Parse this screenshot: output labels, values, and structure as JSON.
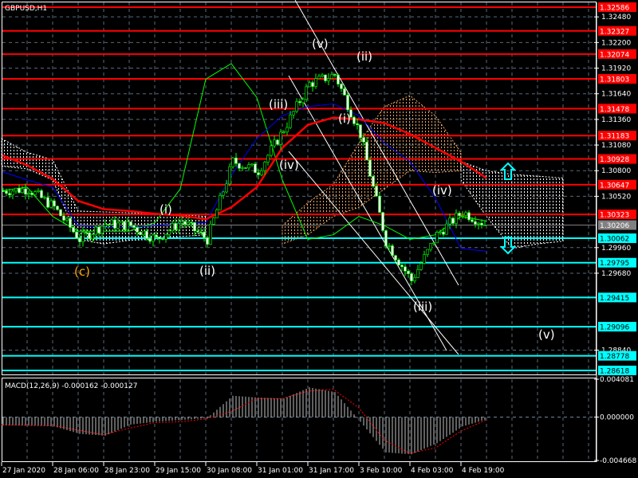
{
  "chart_title": "GBPUSD,H1",
  "macd_label": "MACD(12,26,9) -0.000162 -0.000127",
  "colors": {
    "background": "#000000",
    "bull_candle": "#00ff00",
    "resistance": "#ff0000",
    "support": "#00ffff",
    "current_price": "#808080",
    "ma_thick": "#ff0000",
    "kijun": "#0000ff",
    "chikou": "#00ff00",
    "cloud_bull": "#f4a460",
    "cloud_bear": "#ffffff",
    "macd_hist": "#c0c0c0",
    "macd_signal": "#ff0000"
  },
  "chart_data": {
    "type": "candlestick",
    "symbol": "GBPUSD",
    "timeframe": "H1",
    "ylim": [
      1.28618,
      1.32586
    ],
    "price_ticks": [
      "1.32480",
      "1.32200",
      "1.31920",
      "1.31640",
      "1.31360",
      "1.31080",
      "1.30800",
      "1.30520",
      "1.29960",
      "1.29680",
      "1.28840"
    ],
    "time_labels": [
      "27 Jan 2020",
      "28 Jan 06:00",
      "28 Jan 23:00",
      "29 Jan 15:00",
      "30 Jan 08:00",
      "31 Jan 01:00",
      "31 Jan 17:00",
      "3 Feb 10:00",
      "4 Feb 03:00",
      "4 Feb 19:00"
    ],
    "close_samples_every_8_bars": [
      1.3058,
      1.306,
      1.304,
      1.3005,
      1.3022,
      1.302,
      1.3005,
      1.3025,
      1.3005,
      1.309,
      1.308,
      1.3125,
      1.3175,
      1.3185,
      1.312,
      1.3003,
      1.296,
      1.301,
      1.3035,
      1.302
    ],
    "current_price": "1.30206",
    "resistance_levels": [
      "1.32586",
      "1.32327",
      "1.32074",
      "1.31803",
      "1.31478",
      "1.31183",
      "1.30928",
      "1.30647",
      "1.30323"
    ],
    "support_levels": [
      "1.30062",
      "1.29795",
      "1.29415",
      "1.29096",
      "1.28778",
      "1.28618"
    ],
    "indicators": {
      "moving_average": [
        1.3097,
        1.3086,
        1.3071,
        1.3047,
        1.3038,
        1.3036,
        1.3033,
        1.3031,
        1.3027,
        1.304,
        1.3062,
        1.3105,
        1.313,
        1.3138,
        1.3136,
        1.3132,
        1.312,
        1.3105,
        1.309,
        1.3072
      ],
      "kijun": [
        1.3079,
        1.307,
        1.3062,
        1.302,
        1.3018,
        1.3018,
        1.302,
        1.3023,
        1.3023,
        1.3075,
        1.3115,
        1.314,
        1.315,
        1.3153,
        1.314,
        1.311,
        1.309,
        1.305,
        1.2995,
        1.2992
      ],
      "chikou": [
        1.3058,
        1.3062,
        1.303,
        1.3014,
        1.3014,
        1.3014,
        1.3023,
        1.306,
        1.318,
        1.3197,
        1.316,
        1.307,
        1.3005,
        1.301,
        1.303,
        1.302,
        1.3005,
        1.301,
        1.303,
        1.3025
      ],
      "clouds": [
        {
          "kind": "bear",
          "start_sample": 0,
          "upper": [
            1.3115,
            1.31,
            1.3092,
            1.3036,
            1.3035,
            1.3034,
            1.3033,
            1.3032,
            1.303
          ],
          "lower": [
            1.3085,
            1.3082,
            1.307,
            1.3005,
            1.3,
            1.3004,
            1.3005,
            1.3008,
            1.301
          ]
        },
        {
          "kind": "bull",
          "start_sample": 11,
          "upper": [
            1.302,
            1.3045,
            1.3065,
            1.311,
            1.315,
            1.3162,
            1.314,
            1.31
          ],
          "lower": [
            1.3,
            1.301,
            1.303,
            1.304,
            1.306,
            1.308,
            1.3078,
            1.308
          ]
        },
        {
          "kind": "bear",
          "start_sample": 18,
          "upper": [
            1.309,
            1.308,
            1.3076,
            1.3074,
            1.3072
          ],
          "lower": [
            1.307,
            1.303,
            1.2995,
            1.3,
            1.3003
          ]
        }
      ]
    },
    "wave_labels": [
      {
        "text": "(v)",
        "color": "#ffffff"
      },
      {
        "text": "(ii)",
        "color": "#ffffff"
      },
      {
        "text": "(iii)",
        "color": "#ffffff"
      },
      {
        "text": "(i)",
        "color": "#ffffff"
      },
      {
        "text": "(iv)",
        "color": "#ffffff"
      },
      {
        "text": "(iv)",
        "color": "#ffffff"
      },
      {
        "text": "(i)",
        "color": "#ffffff"
      },
      {
        "text": "(ii)",
        "color": "#ffffff"
      },
      {
        "text": "(c)",
        "color": "#ffa500"
      },
      {
        "text": "(iii)",
        "color": "#ffffff"
      },
      {
        "text": "(v)",
        "color": "#ffffff"
      }
    ],
    "macd": {
      "params": "12,26,9",
      "ylim": [
        -0.004668,
        0.004081
      ],
      "tick_labels": [
        "0.004081",
        "0.000000",
        "-0.004668"
      ],
      "histogram_samples": [
        -0.0009,
        -0.0009,
        -0.001,
        -0.0018,
        -0.002,
        -0.0008,
        -0.0005,
        -0.0003,
        -0.0001,
        0.0023,
        0.0021,
        0.002,
        0.0032,
        0.0027,
        -0.0005,
        -0.0038,
        -0.004,
        -0.0028,
        -0.001,
        -0.0002
      ],
      "signal_samples": [
        -0.0008,
        -0.0009,
        -0.0009,
        -0.0014,
        -0.0019,
        -0.0012,
        -0.0006,
        -0.0005,
        -0.0002,
        0.0006,
        0.002,
        0.002,
        0.0028,
        0.003,
        0.001,
        -0.0025,
        -0.0039,
        -0.0033,
        -0.0015,
        -0.0003
      ]
    }
  }
}
